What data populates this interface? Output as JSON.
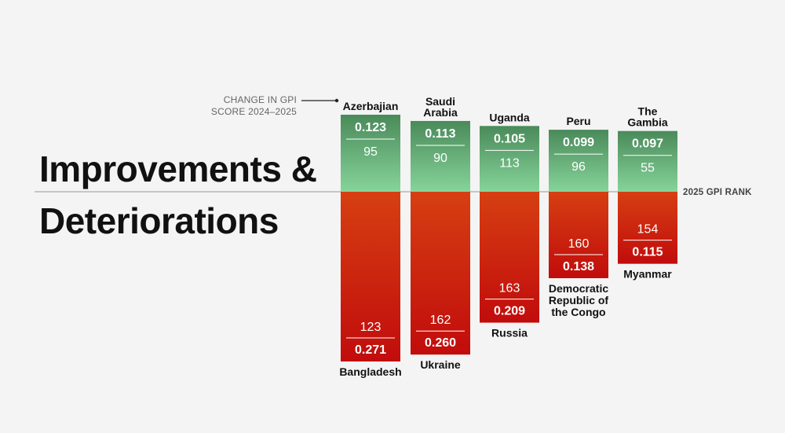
{
  "title": {
    "line1": "Improvements &",
    "line2": "Deteriorations"
  },
  "legend": {
    "change_label_line1": "CHANGE IN GPI",
    "change_label_line2": "SCORE 2024–2025"
  },
  "axis_label": "2025 GPI RANK",
  "colors": {
    "improve_top": "#4a8a5a",
    "improve_bottom": "#86d49a",
    "deteriorate_top": "#d63f12",
    "deteriorate_bottom": "#c10c0c",
    "baseline": "#aaaaaa"
  },
  "chart_data": {
    "type": "bar",
    "improvements": {
      "countries": [
        {
          "name": [
            "Azerbajian"
          ],
          "change": "0.123",
          "rank": "95"
        },
        {
          "name": [
            "Saudi",
            "Arabia"
          ],
          "change": "0.113",
          "rank": "90"
        },
        {
          "name": [
            "Uganda"
          ],
          "change": "0.105",
          "rank": "113"
        },
        {
          "name": [
            "Peru"
          ],
          "change": "0.099",
          "rank": "96"
        },
        {
          "name": [
            "The",
            "Gambia"
          ],
          "change": "0.097",
          "rank": "55"
        }
      ]
    },
    "deteriorations": {
      "countries": [
        {
          "name": [
            "Bangladesh"
          ],
          "change": "0.271",
          "rank": "123"
        },
        {
          "name": [
            "Ukraine"
          ],
          "change": "0.260",
          "rank": "162"
        },
        {
          "name": [
            "Russia"
          ],
          "change": "0.209",
          "rank": "163"
        },
        {
          "name": [
            "Democratic",
            "Republic of",
            "the Congo"
          ],
          "change": "0.138",
          "rank": "160"
        },
        {
          "name": [
            "Myanmar"
          ],
          "change": "0.115",
          "rank": "154"
        }
      ]
    }
  }
}
